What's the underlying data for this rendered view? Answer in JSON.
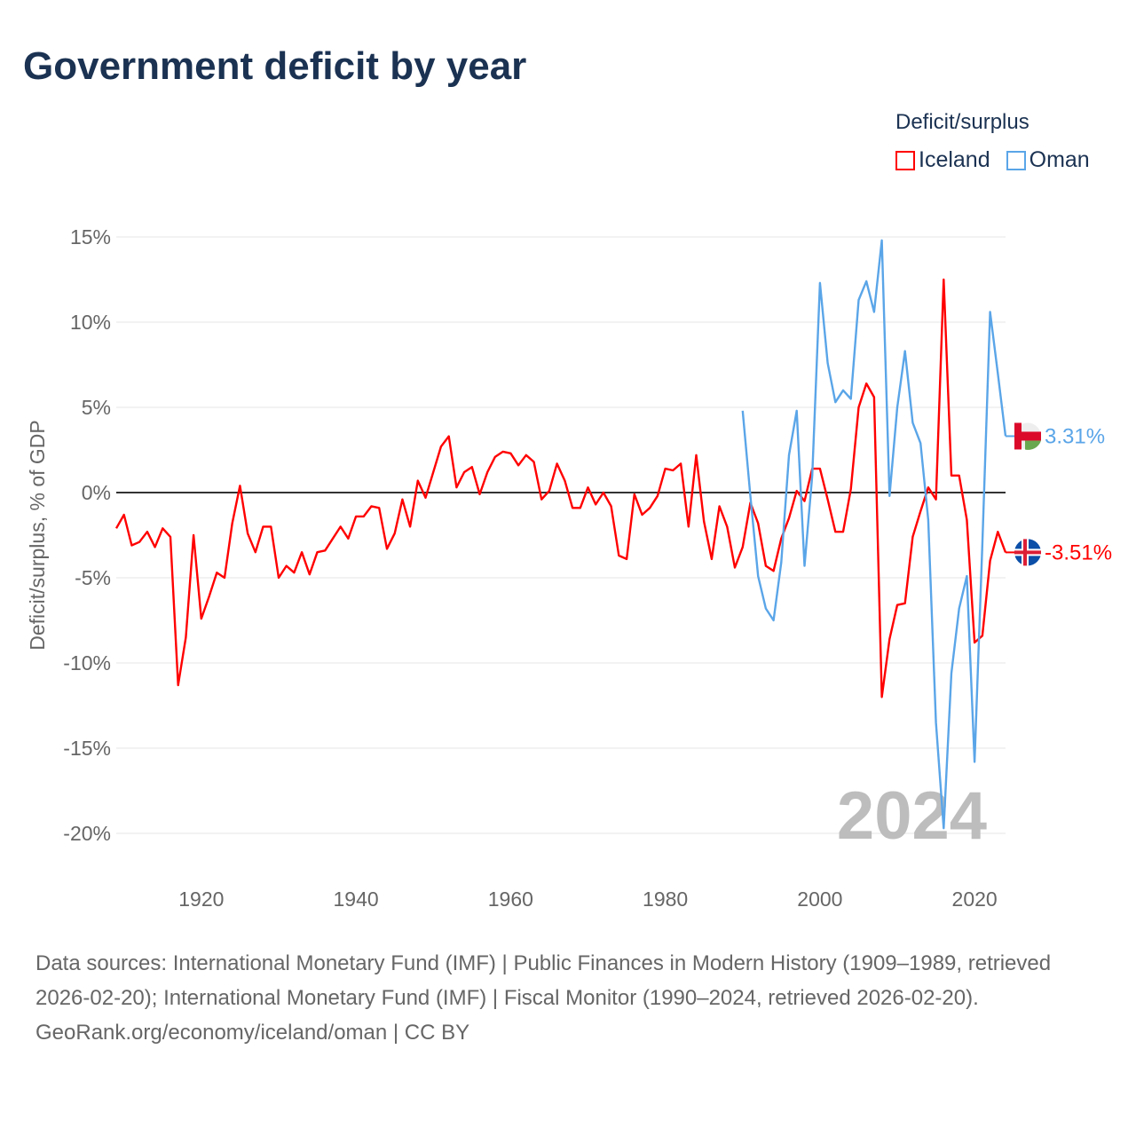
{
  "title": "Government deficit by year",
  "legend": {
    "title": "Deficit/surplus",
    "items": [
      {
        "name": "Iceland",
        "color": "#ff0000"
      },
      {
        "name": "Oman",
        "color": "#5aa5e8"
      }
    ]
  },
  "footer": {
    "sources": "Data sources: International Monetary Fund (IMF) | Public Finances in Modern History (1909–1989, retrieved 2026-02-20); International Monetary Fund (IMF) | Fiscal Monitor (1990–2024, retrieved 2026-02-20).",
    "credit": "GeoRank.org/economy/iceland/oman | CC BY"
  },
  "chart_data": {
    "type": "line",
    "title": "Government deficit by year",
    "xlabel": "",
    "ylabel": "Deficit/surplus, % of GDP",
    "xlim": [
      1909,
      2024
    ],
    "ylim": [
      -22,
      16
    ],
    "x_ticks": [
      1920,
      1940,
      1960,
      1980,
      2000,
      2020
    ],
    "y_ticks": [
      15,
      10,
      5,
      0,
      -5,
      -10,
      -15,
      -20
    ],
    "y_tick_labels": [
      "15%",
      "10%",
      "5%",
      "0%",
      "-5%",
      "-10%",
      "-15%",
      "-20%"
    ],
    "year_watermark": "2024",
    "grid": true,
    "legend_position": "top-right",
    "series": [
      {
        "name": "Iceland",
        "color": "#ff0000",
        "start_year": 1909,
        "end_label": "-3.51%",
        "values": [
          -2.1,
          -1.3,
          -3.1,
          -2.9,
          -2.3,
          -3.2,
          -2.1,
          -2.6,
          -11.3,
          -8.5,
          -2.5,
          -7.4,
          -6.1,
          -4.7,
          -5.0,
          -1.8,
          0.4,
          -2.4,
          -3.5,
          -2.0,
          -2.0,
          -5.0,
          -4.3,
          -4.7,
          -3.5,
          -4.8,
          -3.5,
          -3.4,
          -2.7,
          -2.0,
          -2.7,
          -1.4,
          -1.4,
          -0.8,
          -0.9,
          -3.3,
          -2.4,
          -0.4,
          -2.0,
          0.7,
          -0.3,
          1.2,
          2.7,
          3.3,
          0.3,
          1.2,
          1.5,
          -0.1,
          1.2,
          2.1,
          2.4,
          2.3,
          1.6,
          2.2,
          1.8,
          -0.4,
          0.1,
          1.7,
          0.7,
          -0.9,
          -0.9,
          0.3,
          -0.7,
          0.0,
          -0.8,
          -3.7,
          -3.9,
          -0.1,
          -1.3,
          -0.9,
          -0.2,
          1.4,
          1.3,
          1.7,
          -2.0,
          2.2,
          -1.7,
          -3.9,
          -0.8,
          -2.0,
          -4.4,
          -3.2,
          -0.6,
          -1.8,
          -4.3,
          -4.6,
          -2.7,
          -1.5,
          0.1,
          -0.5,
          1.4,
          1.4,
          -0.4,
          -2.3,
          -2.3,
          0.2,
          5.0,
          6.4,
          5.6,
          -12.0,
          -8.6,
          -6.6,
          -6.5,
          -2.6,
          -1.1,
          0.3,
          -0.4,
          12.5,
          1.0,
          1.0,
          -1.6,
          -8.8,
          -8.4,
          -4.0,
          -2.3,
          -3.51
        ]
      },
      {
        "name": "Oman",
        "color": "#5aa5e8",
        "start_year": 1990,
        "end_label": "3.31%",
        "values": [
          4.8,
          -0.2,
          -4.9,
          -6.8,
          -7.5,
          -4.1,
          2.2,
          4.8,
          -4.3,
          1.0,
          12.3,
          7.6,
          5.3,
          6.0,
          5.5,
          11.3,
          12.4,
          10.6,
          14.8,
          -0.2,
          5.0,
          8.3,
          4.1,
          2.9,
          -1.6,
          -13.5,
          -19.7,
          -10.6,
          -6.8,
          -4.9,
          -15.8,
          -3.0,
          10.6,
          7.0,
          3.31
        ]
      }
    ]
  }
}
